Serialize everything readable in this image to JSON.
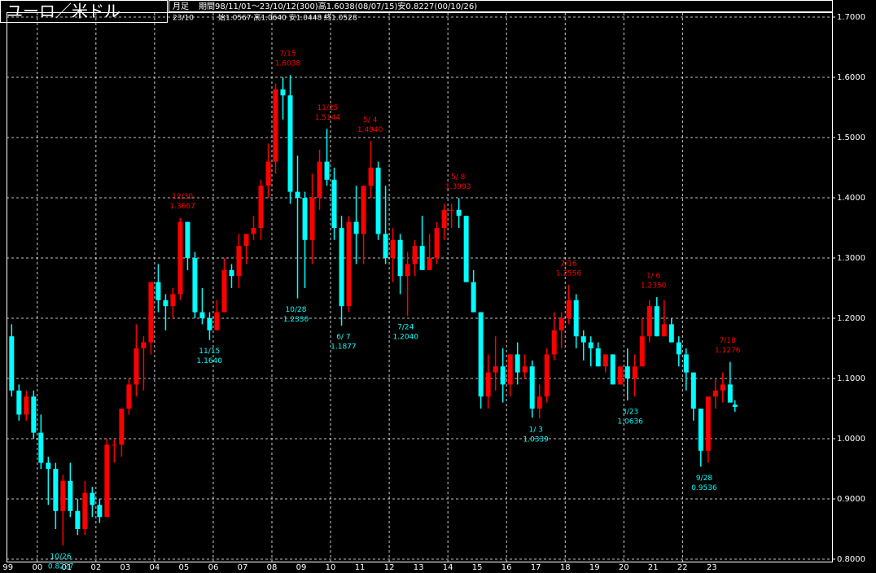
{
  "chart_data": {
    "type": "candlestick",
    "title": "ユーロ／米ドル",
    "period_label": "月足",
    "subtitle": "期間98/11/01～23/10/12(300)高1.6038(08/07/15)安0.8227(00/10/26)",
    "last_date": "23/10",
    "last_ohlc": "始1.0567 高1.0640 安1.0448 終1.0528",
    "up_color": "#ff0000",
    "down_color": "#00ffff",
    "grid": true,
    "ylim": [
      0.8,
      1.7
    ],
    "yticks": [
      {
        "value": 0.8,
        "label": "0.8000"
      },
      {
        "value": 0.9,
        "label": "0.9000"
      },
      {
        "value": 1.0,
        "label": "1.0000"
      },
      {
        "value": 1.1,
        "label": "1.1000"
      },
      {
        "value": 1.2,
        "label": "1.2000"
      },
      {
        "value": 1.3,
        "label": "1.3000"
      },
      {
        "value": 1.4,
        "label": "1.4000"
      },
      {
        "value": 1.5,
        "label": "1.5000"
      },
      {
        "value": 1.6,
        "label": "1.6000"
      },
      {
        "value": 1.7,
        "label": "1.7000"
      }
    ],
    "xlim": [
      1998.95,
      2027.1
    ],
    "xticks": [
      {
        "value": 1999,
        "label": "99"
      },
      {
        "value": 2000,
        "label": "00"
      },
      {
        "value": 2001,
        "label": "01"
      },
      {
        "value": 2002,
        "label": "02"
      },
      {
        "value": 2003,
        "label": "03"
      },
      {
        "value": 2004,
        "label": "04"
      },
      {
        "value": 2005,
        "label": "05"
      },
      {
        "value": 2006,
        "label": "06"
      },
      {
        "value": 2007,
        "label": "07"
      },
      {
        "value": 2008,
        "label": "08"
      },
      {
        "value": 2009,
        "label": "09"
      },
      {
        "value": 2010,
        "label": "10"
      },
      {
        "value": 2011,
        "label": "11"
      },
      {
        "value": 2012,
        "label": "12"
      },
      {
        "value": 2013,
        "label": "13"
      },
      {
        "value": 2014,
        "label": "14"
      },
      {
        "value": 2015,
        "label": "15"
      },
      {
        "value": 2016,
        "label": "16"
      },
      {
        "value": 2017,
        "label": "17"
      },
      {
        "value": 2018,
        "label": "18"
      },
      {
        "value": 2019,
        "label": "19"
      },
      {
        "value": 2020,
        "label": "20"
      },
      {
        "value": 2021,
        "label": "21"
      },
      {
        "value": 2022,
        "label": "22"
      },
      {
        "value": 2023,
        "label": "23"
      }
    ],
    "x": [
      1999.125,
      1999.375,
      1999.625,
      1999.875,
      2000.125,
      2000.375,
      2000.625,
      2000.875,
      2001.125,
      2001.375,
      2001.625,
      2001.875,
      2002.125,
      2002.375,
      2002.625,
      2002.875,
      2003.125,
      2003.375,
      2003.625,
      2003.875,
      2004.125,
      2004.375,
      2004.625,
      2004.875,
      2005.125,
      2005.375,
      2005.625,
      2005.875,
      2006.125,
      2006.375,
      2006.625,
      2006.875,
      2007.125,
      2007.375,
      2007.625,
      2007.875,
      2008.125,
      2008.375,
      2008.625,
      2008.875,
      2009.125,
      2009.375,
      2009.625,
      2009.875,
      2010.125,
      2010.375,
      2010.625,
      2010.875,
      2011.125,
      2011.375,
      2011.625,
      2011.875,
      2012.125,
      2012.375,
      2012.625,
      2012.875,
      2013.125,
      2013.375,
      2013.625,
      2013.875,
      2014.125,
      2014.375,
      2014.625,
      2014.875,
      2015.125,
      2015.375,
      2015.625,
      2015.875,
      2016.125,
      2016.375,
      2016.625,
      2016.875,
      2017.125,
      2017.375,
      2017.625,
      2017.875,
      2018.125,
      2018.375,
      2018.625,
      2018.875,
      2019.125,
      2019.375,
      2019.625,
      2019.875,
      2020.125,
      2020.375,
      2020.625,
      2020.875,
      2021.125,
      2021.375,
      2021.625,
      2021.875,
      2022.125,
      2022.375,
      2022.625,
      2022.875,
      2023.125,
      2023.375,
      2023.625,
      2023.79
    ],
    "open": [
      1.17,
      1.08,
      1.04,
      1.07,
      1.01,
      0.96,
      0.95,
      0.88,
      0.93,
      0.88,
      0.85,
      0.91,
      0.89,
      0.87,
      0.99,
      0.99,
      1.05,
      1.09,
      1.15,
      1.16,
      1.26,
      1.23,
      1.22,
      1.24,
      1.36,
      1.3,
      1.21,
      1.2,
      1.18,
      1.21,
      1.28,
      1.27,
      1.32,
      1.34,
      1.35,
      1.42,
      1.46,
      1.58,
      1.57,
      1.41,
      1.4,
      1.33,
      1.4,
      1.46,
      1.43,
      1.35,
      1.22,
      1.36,
      1.34,
      1.42,
      1.45,
      1.34,
      1.3,
      1.33,
      1.27,
      1.29,
      1.32,
      1.28,
      1.3,
      1.35,
      1.38,
      1.38,
      1.37,
      1.26,
      1.21,
      1.07,
      1.11,
      1.12,
      1.09,
      1.14,
      1.11,
      1.12,
      1.05,
      1.07,
      1.14,
      1.18,
      1.2,
      1.23,
      1.17,
      1.16,
      1.15,
      1.12,
      1.14,
      1.09,
      1.12,
      1.1,
      1.12,
      1.17,
      1.22,
      1.17,
      1.19,
      1.16,
      1.14,
      1.11,
      1.05,
      0.98,
      1.07,
      1.08,
      1.09,
      1.0567
    ],
    "high": [
      1.19,
      1.09,
      1.08,
      1.08,
      1.04,
      0.97,
      0.96,
      0.94,
      0.96,
      0.9,
      0.93,
      0.92,
      0.9,
      1.0,
      1.0,
      1.05,
      1.1,
      1.19,
      1.17,
      1.26,
      1.29,
      1.24,
      1.25,
      1.3667,
      1.36,
      1.31,
      1.25,
      1.21,
      1.23,
      1.3,
      1.29,
      1.34,
      1.34,
      1.37,
      1.43,
      1.49,
      1.59,
      1.6,
      1.6038,
      1.47,
      1.41,
      1.44,
      1.48,
      1.5144,
      1.45,
      1.37,
      1.37,
      1.42,
      1.42,
      1.494,
      1.46,
      1.42,
      1.35,
      1.34,
      1.31,
      1.33,
      1.37,
      1.34,
      1.36,
      1.39,
      1.39,
      1.3993,
      1.37,
      1.28,
      1.21,
      1.14,
      1.17,
      1.15,
      1.14,
      1.16,
      1.14,
      1.13,
      1.09,
      1.15,
      1.21,
      1.21,
      1.2556,
      1.24,
      1.18,
      1.17,
      1.16,
      1.14,
      1.14,
      1.12,
      1.15,
      1.14,
      1.2,
      1.23,
      1.235,
      1.23,
      1.2,
      1.17,
      1.15,
      1.11,
      1.05,
      1.07,
      1.1,
      1.11,
      1.1276,
      1.064
    ],
    "low": [
      1.07,
      1.03,
      1.03,
      1.0,
      0.95,
      0.89,
      0.85,
      0.8227,
      0.87,
      0.84,
      0.84,
      0.87,
      0.86,
      0.87,
      0.96,
      0.97,
      1.04,
      1.07,
      1.08,
      1.14,
      1.21,
      1.18,
      1.2,
      1.23,
      1.28,
      1.2,
      1.19,
      1.164,
      1.18,
      1.21,
      1.25,
      1.25,
      1.29,
      1.33,
      1.33,
      1.4,
      1.44,
      1.53,
      1.39,
      1.233,
      1.25,
      1.29,
      1.38,
      1.42,
      1.33,
      1.1877,
      1.21,
      1.29,
      1.29,
      1.4,
      1.33,
      1.29,
      1.26,
      1.24,
      1.204,
      1.27,
      1.28,
      1.28,
      1.29,
      1.33,
      1.35,
      1.35,
      1.26,
      1.21,
      1.05,
      1.05,
      1.08,
      1.06,
      1.07,
      1.09,
      1.1,
      1.035,
      1.0339,
      1.06,
      1.13,
      1.15,
      1.19,
      1.15,
      1.13,
      1.12,
      1.12,
      1.11,
      1.09,
      1.09,
      1.0636,
      1.07,
      1.12,
      1.16,
      1.17,
      1.17,
      1.16,
      1.12,
      1.08,
      1.03,
      0.9536,
      0.96,
      1.05,
      1.06,
      1.06,
      1.0448
    ],
    "close": [
      1.08,
      1.04,
      1.07,
      1.01,
      0.96,
      0.95,
      0.88,
      0.93,
      0.88,
      0.85,
      0.91,
      0.89,
      0.87,
      0.99,
      0.99,
      1.05,
      1.09,
      1.15,
      1.16,
      1.26,
      1.23,
      1.22,
      1.24,
      1.36,
      1.3,
      1.21,
      1.2,
      1.18,
      1.21,
      1.28,
      1.27,
      1.32,
      1.34,
      1.35,
      1.42,
      1.46,
      1.58,
      1.57,
      1.41,
      1.4,
      1.33,
      1.4,
      1.46,
      1.43,
      1.35,
      1.22,
      1.36,
      1.34,
      1.42,
      1.45,
      1.34,
      1.3,
      1.33,
      1.27,
      1.29,
      1.32,
      1.28,
      1.3,
      1.35,
      1.38,
      1.38,
      1.37,
      1.26,
      1.21,
      1.07,
      1.11,
      1.12,
      1.09,
      1.14,
      1.11,
      1.12,
      1.05,
      1.07,
      1.14,
      1.18,
      1.2,
      1.23,
      1.17,
      1.16,
      1.15,
      1.12,
      1.14,
      1.09,
      1.12,
      1.1,
      1.12,
      1.17,
      1.22,
      1.17,
      1.19,
      1.16,
      1.14,
      1.11,
      1.05,
      0.98,
      1.07,
      1.08,
      1.09,
      1.06,
      1.0528
    ],
    "annotations": [
      {
        "kind": "low",
        "date": "10/26",
        "label": "0.8227",
        "value": 0.8227,
        "x": 2000.8
      },
      {
        "kind": "high",
        "date": "12/30",
        "label": "1.3667",
        "value": 1.3667,
        "x": 2004.95
      },
      {
        "kind": "low",
        "date": "11/15",
        "label": "1.1640",
        "value": 1.164,
        "x": 2005.87
      },
      {
        "kind": "high",
        "date": "7/15",
        "label": "1.6038",
        "value": 1.6038,
        "x": 2008.54
      },
      {
        "kind": "low",
        "date": "10/28",
        "label": "1.2330",
        "value": 1.233,
        "x": 2008.82
      },
      {
        "kind": "high",
        "date": "11/25",
        "label": "1.5144",
        "value": 1.5144,
        "x": 2009.9
      },
      {
        "kind": "low",
        "date": "6/ 7",
        "label": "1.1877",
        "value": 1.1877,
        "x": 2010.44
      },
      {
        "kind": "high",
        "date": "5/ 4",
        "label": "1.4940",
        "value": 1.494,
        "x": 2011.35
      },
      {
        "kind": "low",
        "date": "7/24",
        "label": "1.2040",
        "value": 1.204,
        "x": 2012.56
      },
      {
        "kind": "high",
        "date": "5/ 8",
        "label": "1.3993",
        "value": 1.3993,
        "x": 2014.35
      },
      {
        "kind": "low",
        "date": "1/ 3",
        "label": "1.0339",
        "value": 1.0339,
        "x": 2017.0
      },
      {
        "kind": "high",
        "date": "2/16",
        "label": "1.2556",
        "value": 1.2556,
        "x": 2018.12
      },
      {
        "kind": "low",
        "date": "3/23",
        "label": "1.0636",
        "value": 1.0636,
        "x": 2020.22
      },
      {
        "kind": "high",
        "date": "1/ 6",
        "label": "1.2350",
        "value": 1.235,
        "x": 2021.01
      },
      {
        "kind": "low",
        "date": "9/28",
        "label": "0.9536",
        "value": 0.9536,
        "x": 2022.74
      },
      {
        "kind": "high",
        "date": "7/18",
        "label": "1.1276",
        "value": 1.1276,
        "x": 2023.54
      }
    ]
  }
}
